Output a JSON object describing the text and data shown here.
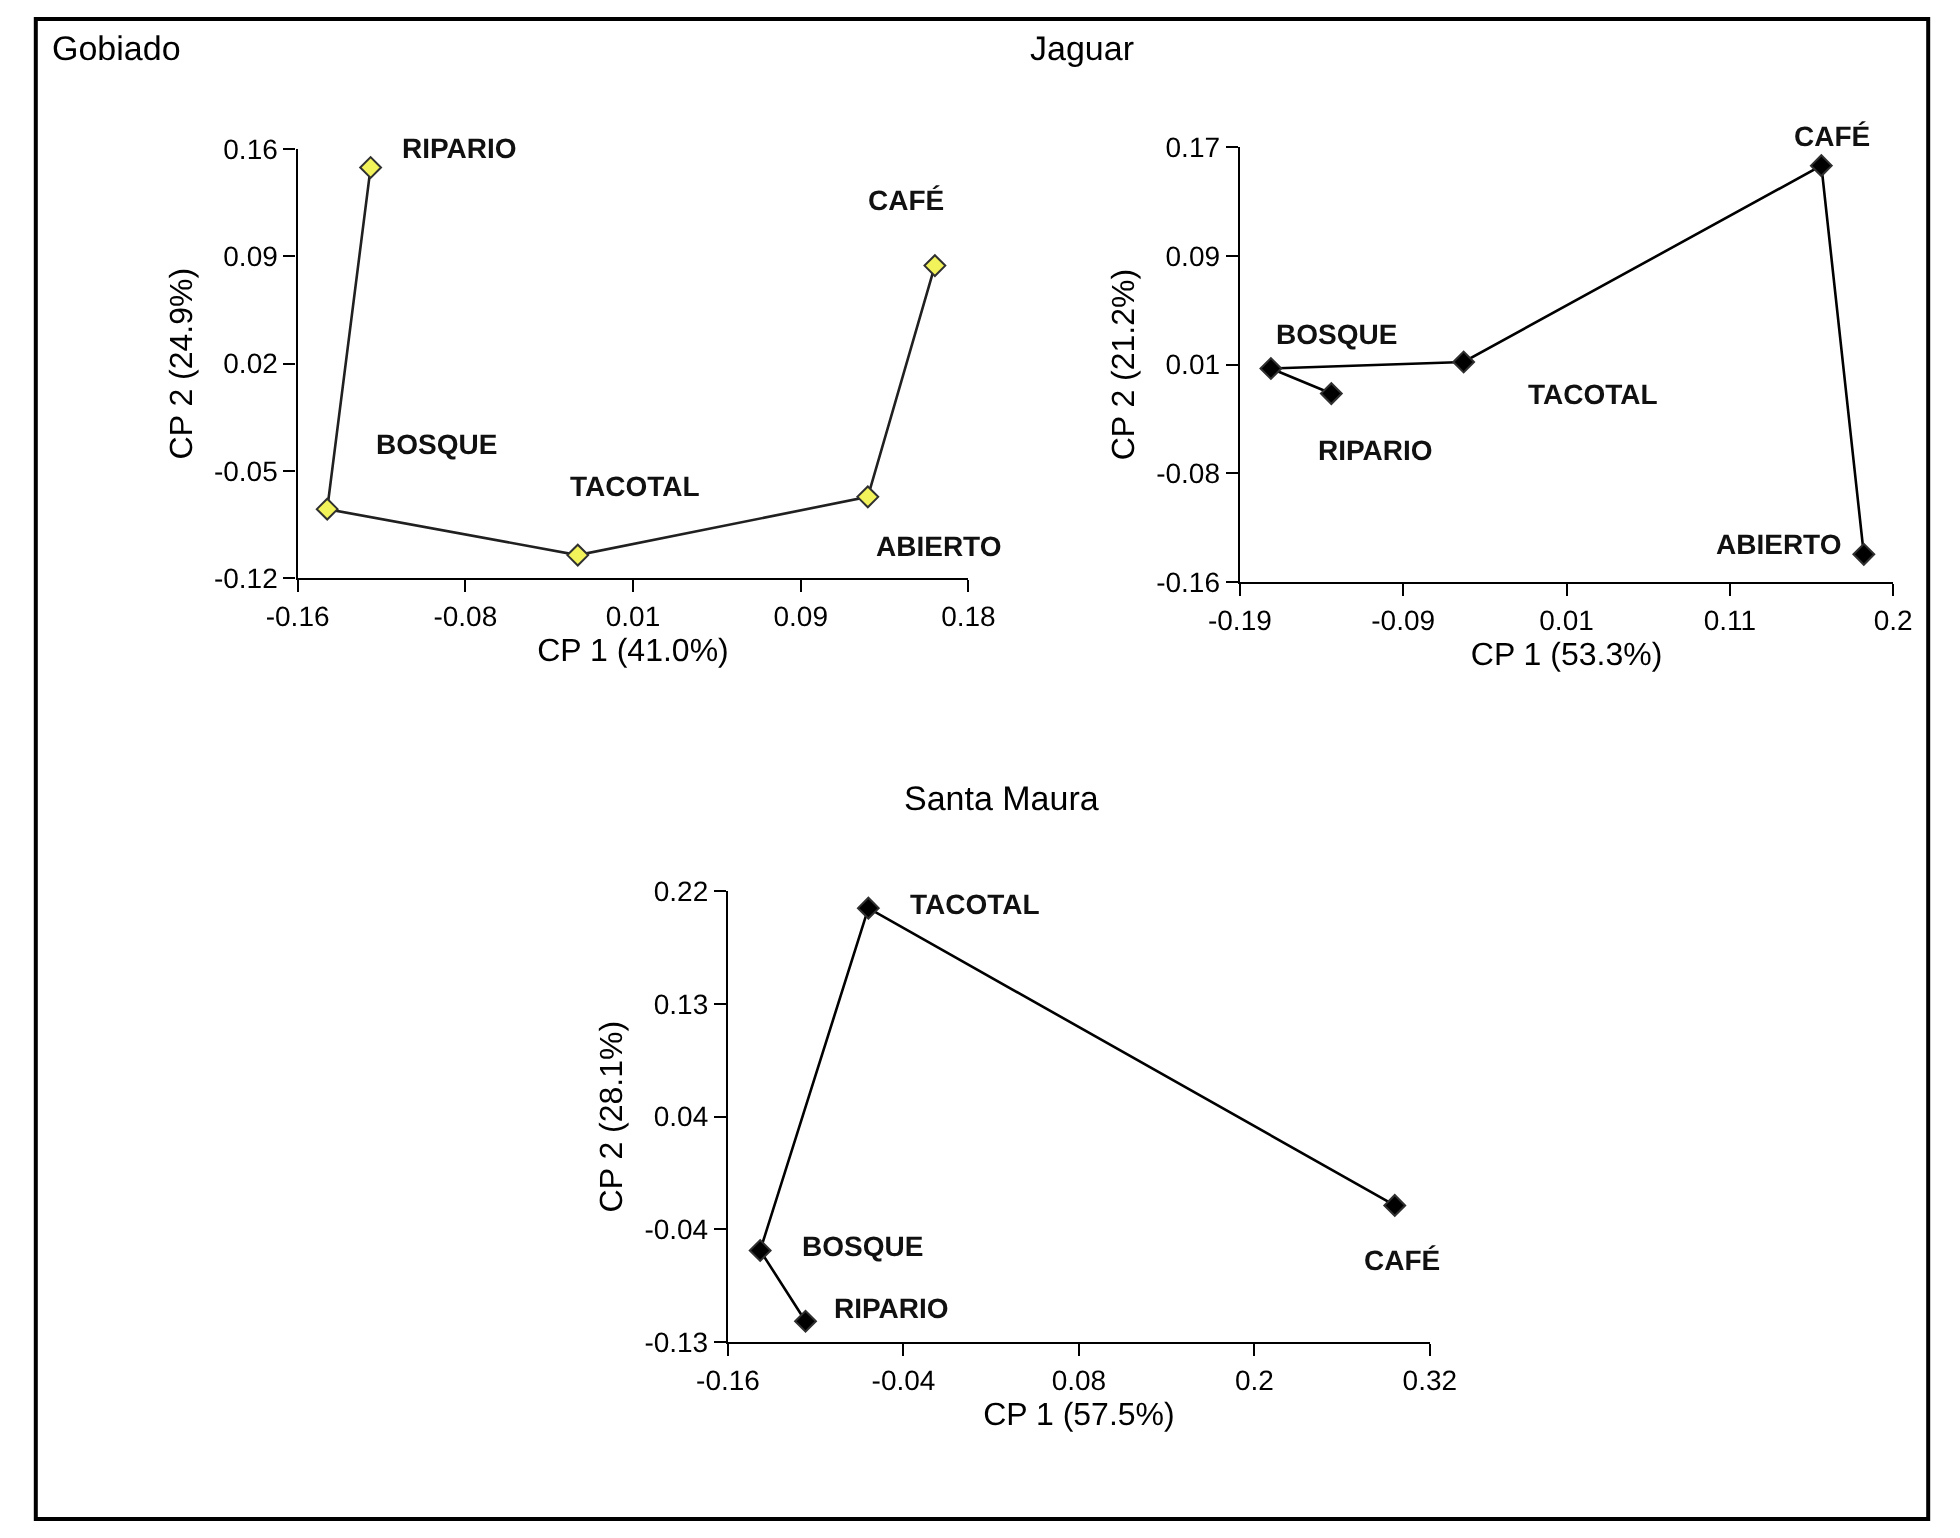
{
  "chart_data": [
    {
      "type": "scatter",
      "title": "Gobiado",
      "xlabel": "CP 1 (41.0%)",
      "ylabel": "CP 2 (24.9%)",
      "xlim": [
        -0.16,
        0.18
      ],
      "ylim": [
        -0.12,
        0.16
      ],
      "xticks": [
        -0.16,
        {
          "value": -0.075,
          "label": "-0.08"
        },
        0.01,
        {
          "value": 0.095,
          "label": "0.09"
        },
        0.18
      ],
      "yticks": [
        -0.12,
        -0.05,
        0.02,
        0.09,
        0.16
      ],
      "line_style": "solid",
      "series": [
        {
          "type": "line",
          "marker": "none",
          "color": "#202020",
          "x": [
            -0.123,
            -0.145,
            -0.018,
            0.129,
            0.163
          ],
          "values": [
            0.148,
            -0.075,
            -0.105,
            -0.067,
            0.084
          ]
        },
        {
          "type": "scatter",
          "marker": "diamond",
          "color": "#f2f25a",
          "x": [
            -0.123,
            -0.145,
            -0.018,
            0.129,
            0.163
          ],
          "values": [
            0.148,
            -0.075,
            -0.105,
            -0.067,
            0.084
          ]
        }
      ],
      "annotations": [
        {
          "text": "RIPARIO",
          "x": -0.123,
          "y": 0.148
        },
        {
          "text": "BOSQUE",
          "x": -0.145,
          "y": -0.075
        },
        {
          "text": "TACOTAL",
          "x": -0.018,
          "y": -0.105
        },
        {
          "text": "ABIERTO",
          "x": 0.129,
          "y": -0.067
        },
        {
          "text": "CAFÉ",
          "x": 0.163,
          "y": 0.084
        }
      ]
    },
    {
      "type": "scatter",
      "title": "Jaguar",
      "xlabel": "CP 1 (53.3%)",
      "ylabel": "CP 2 (21.2%)",
      "xlim": [
        -0.19,
        0.21
      ],
      "ylim": [
        -0.16,
        0.17
      ],
      "xticks": [
        -0.19,
        -0.09,
        0.01,
        0.11,
        {
          "value": 0.21,
          "label": "0.2"
        }
      ],
      "yticks": [
        -0.16,
        {
          "value": -0.0775,
          "label": "-0.08"
        },
        {
          "value": 0.005,
          "label": "0.01"
        },
        {
          "value": 0.0875,
          "label": "0.09"
        },
        0.17
      ],
      "marker": "diamond",
      "line_style": "solid",
      "series": [
        {
          "color": "#000000",
          "x": [
            -0.134,
            -0.171,
            -0.053,
            0.166,
            0.192
          ],
          "values": [
            -0.017,
            0.002,
            0.007,
            0.156,
            -0.139
          ]
        }
      ],
      "annotations": [
        {
          "text": "RIPARIO",
          "x": -0.134,
          "y": -0.017
        },
        {
          "text": "BOSQUE",
          "x": -0.171,
          "y": 0.002
        },
        {
          "text": "TACOTAL",
          "x": -0.053,
          "y": 0.007
        },
        {
          "text": "CAFÉ",
          "x": 0.166,
          "y": 0.156
        },
        {
          "text": "ABIERTO",
          "x": 0.192,
          "y": -0.139
        }
      ]
    },
    {
      "type": "scatter",
      "title": "Santa Maura",
      "xlabel": "CP 1 (57.5%)",
      "ylabel": "CP 2 (28.1%)",
      "xlim": [
        -0.16,
        0.32
      ],
      "ylim": [
        -0.13,
        0.22
      ],
      "xticks": [
        -0.16,
        -0.04,
        0.08,
        0.2,
        0.32
      ],
      "yticks": [
        -0.13,
        {
          "value": -0.0425,
          "label": "-0.04"
        },
        {
          "value": 0.045,
          "label": "0.04"
        },
        {
          "value": 0.1325,
          "label": "0.13"
        },
        0.22
      ],
      "marker": "diamond",
      "line_style": "solid",
      "series": [
        {
          "color": "#000000",
          "x": [
            -0.107,
            -0.138,
            -0.064,
            0.296
          ],
          "values": [
            -0.114,
            -0.059,
            0.207,
            -0.024
          ]
        }
      ],
      "annotations": [
        {
          "text": "RIPARIO",
          "x": -0.107,
          "y": -0.114
        },
        {
          "text": "BOSQUE",
          "x": -0.138,
          "y": -0.059
        },
        {
          "text": "TACOTAL",
          "x": -0.064,
          "y": 0.207
        },
        {
          "text": "CAFÉ",
          "x": 0.296,
          "y": -0.024
        }
      ]
    }
  ]
}
